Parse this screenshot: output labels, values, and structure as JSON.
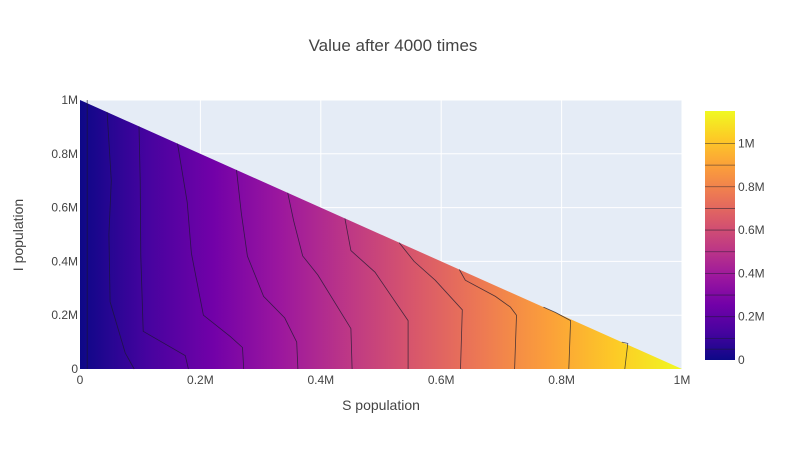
{
  "chart_data": {
    "type": "contour",
    "title": "Value after 4000 times",
    "xlabel": "S population",
    "ylabel": "I population",
    "x_range": [
      0,
      1000000
    ],
    "y_range": [
      0,
      1000000
    ],
    "x_ticks": [
      {
        "value": 0,
        "label": "0"
      },
      {
        "value": 200000,
        "label": "0.2M"
      },
      {
        "value": 400000,
        "label": "0.4M"
      },
      {
        "value": 600000,
        "label": "0.6M"
      },
      {
        "value": 800000,
        "label": "0.8M"
      },
      {
        "value": 1000000,
        "label": "1M"
      }
    ],
    "y_ticks": [
      {
        "value": 0,
        "label": "0"
      },
      {
        "value": 200000,
        "label": "0.2M"
      },
      {
        "value": 400000,
        "label": "0.4M"
      },
      {
        "value": 600000,
        "label": "0.6M"
      },
      {
        "value": 800000,
        "label": "0.8M"
      },
      {
        "value": 1000000,
        "label": "1M"
      }
    ],
    "domain_note": "S + I <= 1M",
    "colorscale": "plasma",
    "colorscale_stops": [
      "#0d0887",
      "#46039f",
      "#7201a8",
      "#9c179e",
      "#bd3786",
      "#d8576b",
      "#ed7953",
      "#fb9f3a",
      "#fdca26",
      "#f0f921"
    ],
    "colorbar": {
      "range": [
        0,
        1150000
      ],
      "ticks": [
        {
          "value": 0,
          "label": "0"
        },
        {
          "value": 200000,
          "label": "0.2M"
        },
        {
          "value": 400000,
          "label": "0.4M"
        },
        {
          "value": 600000,
          "label": "0.6M"
        },
        {
          "value": 800000,
          "label": "0.8M"
        },
        {
          "value": 1000000,
          "label": "1M"
        }
      ]
    },
    "contour_levels": [
      {
        "level": 50000,
        "points": [
          [
            12000,
            1000000
          ],
          [
            12000,
            0
          ]
        ]
      },
      {
        "level": 100000,
        "points": [
          [
            45000,
            955000
          ],
          [
            52000,
            700000
          ],
          [
            48000,
            500000
          ],
          [
            50000,
            250000
          ],
          [
            75000,
            60000
          ],
          [
            90000,
            0
          ]
        ]
      },
      {
        "level": 200000,
        "points": [
          [
            98000,
            902000
          ],
          [
            100000,
            700000
          ],
          [
            101000,
            420000
          ],
          [
            105000,
            140000
          ],
          [
            175000,
            50000
          ],
          [
            180000,
            0
          ]
        ]
      },
      {
        "level": 300000,
        "points": [
          [
            162000,
            838000
          ],
          [
            178000,
            620000
          ],
          [
            185000,
            430000
          ],
          [
            205000,
            200000
          ],
          [
            250000,
            120000
          ],
          [
            270000,
            80000
          ],
          [
            272000,
            0
          ]
        ]
      },
      {
        "level": 400000,
        "points": [
          [
            260000,
            740000
          ],
          [
            268000,
            580000
          ],
          [
            278000,
            420000
          ],
          [
            305000,
            270000
          ],
          [
            340000,
            190000
          ],
          [
            360000,
            100000
          ],
          [
            362000,
            0
          ]
        ]
      },
      {
        "level": 500000,
        "points": [
          [
            345000,
            655000
          ],
          [
            355000,
            550000
          ],
          [
            370000,
            420000
          ],
          [
            395000,
            350000
          ],
          [
            450000,
            150000
          ],
          [
            452000,
            0
          ]
        ]
      },
      {
        "level": 600000,
        "points": [
          [
            440000,
            560000
          ],
          [
            450000,
            440000
          ],
          [
            490000,
            360000
          ],
          [
            545000,
            180000
          ],
          [
            545000,
            0
          ]
        ]
      },
      {
        "level": 700000,
        "points": [
          [
            530000,
            470000
          ],
          [
            555000,
            400000
          ],
          [
            590000,
            330000
          ],
          [
            635000,
            220000
          ],
          [
            632000,
            0
          ]
        ]
      },
      {
        "level": 800000,
        "points": [
          [
            630000,
            370000
          ],
          [
            640000,
            330000
          ],
          [
            690000,
            270000
          ],
          [
            715000,
            230000
          ],
          [
            725000,
            200000
          ],
          [
            722000,
            0
          ]
        ]
      },
      {
        "level": 900000,
        "points": [
          [
            770000,
            230000
          ],
          [
            790000,
            210000
          ],
          [
            815000,
            180000
          ],
          [
            812000,
            0
          ]
        ]
      },
      {
        "level": 1000000,
        "points": [
          [
            900000,
            100000
          ],
          [
            910000,
            95000
          ],
          [
            905000,
            0
          ]
        ]
      }
    ]
  }
}
